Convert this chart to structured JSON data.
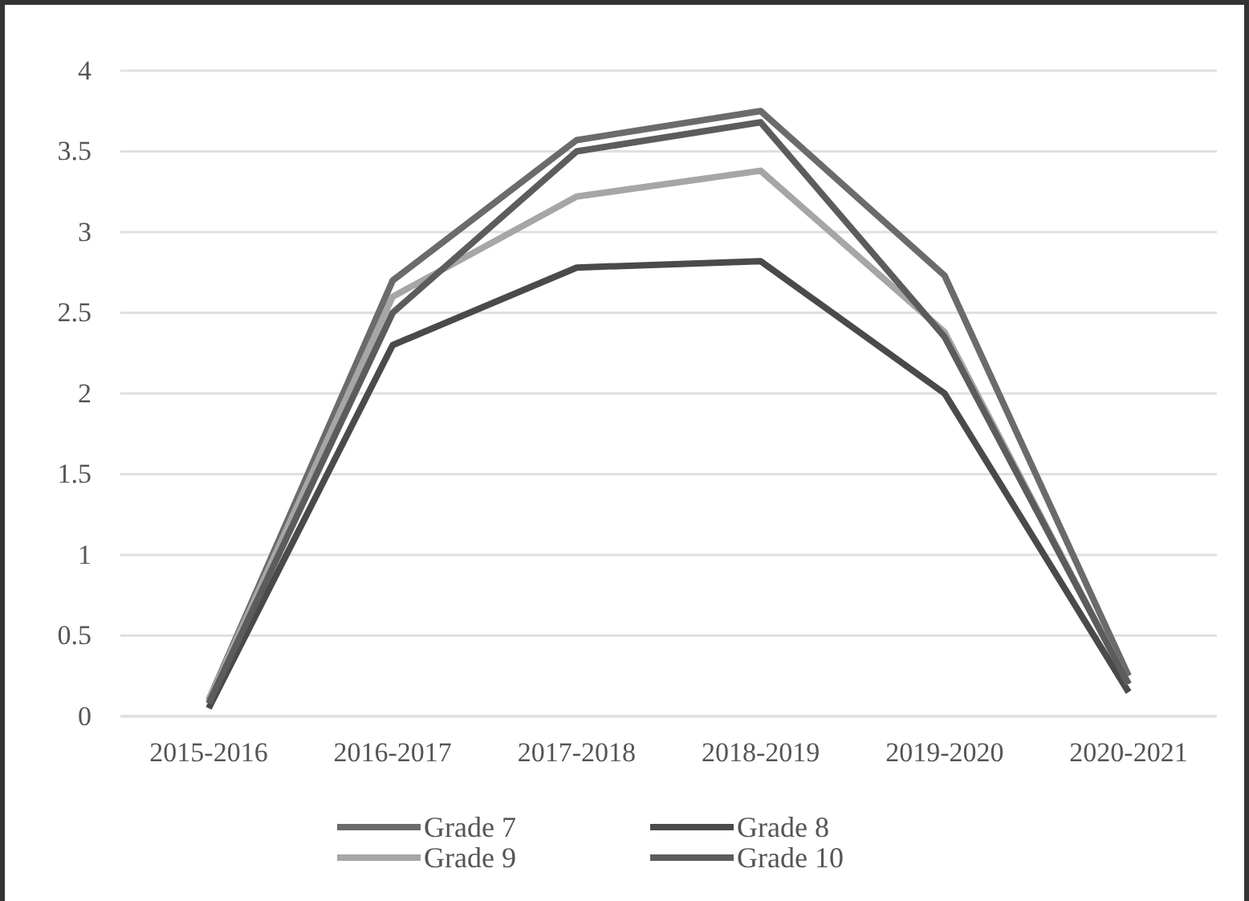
{
  "chart_data": {
    "type": "line",
    "categories": [
      "2015-2016",
      "2016-2017",
      "2017-2018",
      "2018-2019",
      "2019-2020",
      "2020-2021"
    ],
    "series": [
      {
        "name": "Grade 7",
        "color": "#6b6b6b",
        "values": [
          0.1,
          2.7,
          3.57,
          3.75,
          2.73,
          0.25
        ]
      },
      {
        "name": "Grade 8",
        "color": "#4a4a4a",
        "values": [
          0.05,
          2.3,
          2.78,
          2.82,
          2.0,
          0.15
        ]
      },
      {
        "name": "Grade 9",
        "color": "#a6a6a6",
        "values": [
          0.1,
          2.6,
          3.22,
          3.38,
          2.38,
          0.2
        ]
      },
      {
        "name": "Grade 10",
        "color": "#5c5c5c",
        "values": [
          0.08,
          2.5,
          3.5,
          3.68,
          2.35,
          0.2
        ]
      }
    ],
    "ylim": [
      0,
      4
    ],
    "yticks": [
      0,
      0.5,
      1,
      1.5,
      2,
      2.5,
      3,
      3.5,
      4
    ],
    "grid": "y",
    "legend": "bottom",
    "marker": "none",
    "line_style": "solid"
  }
}
